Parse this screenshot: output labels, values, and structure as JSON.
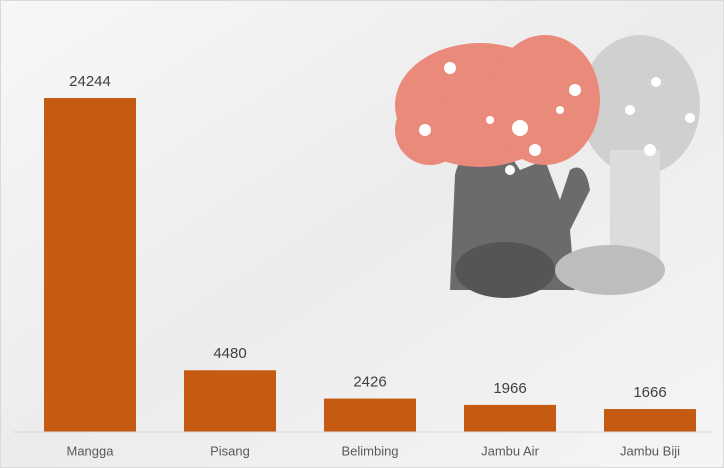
{
  "chart_data": {
    "type": "bar",
    "categories": [
      "Mangga",
      "Pisang",
      "Belimbing",
      "Jambu Air",
      "Jambu Biji"
    ],
    "values": [
      24244,
      4480,
      2426,
      1966,
      1666
    ],
    "color": "#c55a11"
  }
}
